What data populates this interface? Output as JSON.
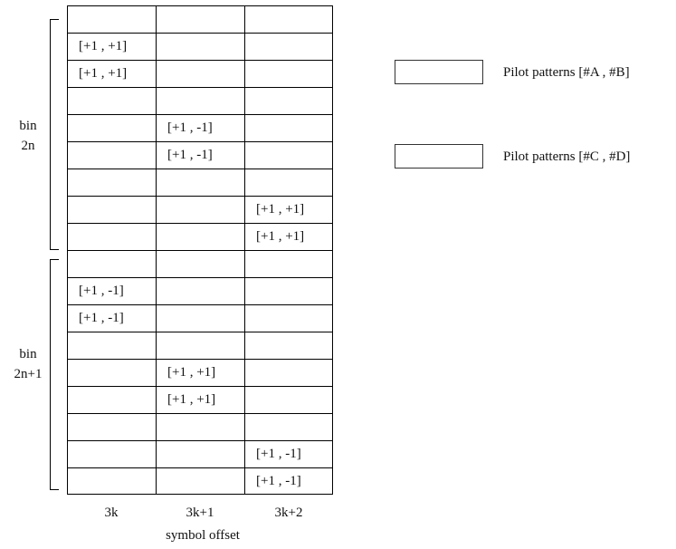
{
  "grid": {
    "columns": [
      "3k",
      "3k+1",
      "3k+2"
    ],
    "rows": 18,
    "pilot_cells": [
      {
        "row": 1,
        "col": 0,
        "label": "[+1 , +1]"
      },
      {
        "row": 2,
        "col": 0,
        "label": "[+1 , +1]"
      },
      {
        "row": 4,
        "col": 1,
        "label": "[+1 , -1]"
      },
      {
        "row": 5,
        "col": 1,
        "label": "[+1 , -1]"
      },
      {
        "row": 7,
        "col": 2,
        "label": "[+1 , +1]"
      },
      {
        "row": 8,
        "col": 2,
        "label": "[+1 , +1]"
      },
      {
        "row": 10,
        "col": 0,
        "label": "[+1 , -1]"
      },
      {
        "row": 11,
        "col": 0,
        "label": "[+1 , -1]"
      },
      {
        "row": 13,
        "col": 1,
        "label": "[+1 , +1]"
      },
      {
        "row": 14,
        "col": 1,
        "label": "[+1 , +1]"
      },
      {
        "row": 16,
        "col": 2,
        "label": "[+1 , -1]"
      },
      {
        "row": 17,
        "col": 2,
        "label": "[+1 , -1]"
      }
    ]
  },
  "bins": [
    {
      "line1": "bin",
      "line2": "2n"
    },
    {
      "line1": "bin",
      "line2": "2n+1"
    }
  ],
  "x_axis": {
    "label": "symbol offset"
  },
  "legend": [
    {
      "label": "Pilot patterns [#A , #B]"
    },
    {
      "label": "Pilot patterns [#C , #D]"
    }
  ]
}
